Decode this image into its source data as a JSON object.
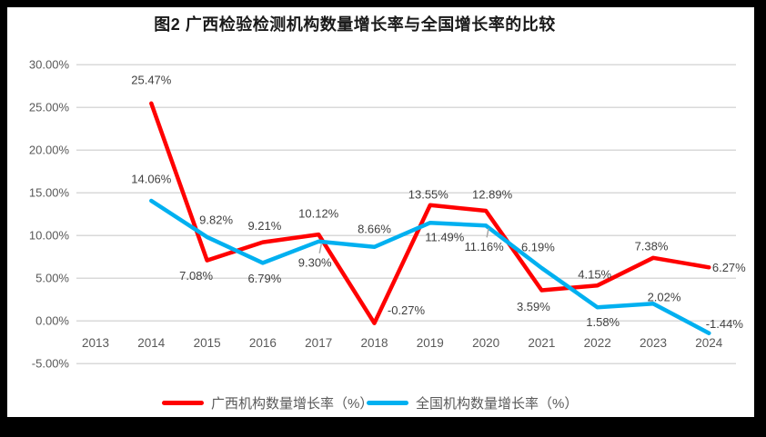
{
  "chart_data": {
    "type": "line",
    "title": "图2 广西检验检测机构数量增长率与全国增长率的比较",
    "categories": [
      "2013",
      "2014",
      "2015",
      "2016",
      "2017",
      "2018",
      "2019",
      "2020",
      "2021",
      "2022",
      "2023",
      "2024"
    ],
    "xlabel": "",
    "ylabel": "",
    "y_axis": {
      "min": -5,
      "max": 30,
      "step": 5,
      "tick_labels": [
        "-5.00%",
        "0.00%",
        "5.00%",
        "10.00%",
        "15.00%",
        "20.00%",
        "25.00%",
        "30.00%"
      ]
    },
    "grid": true,
    "legend_position": "bottom",
    "colors": {
      "guangxi": "#ff0000",
      "national": "#00b0f0",
      "gridline": "#d9d9d9",
      "axis_text": "#595959",
      "label_text": "#404040",
      "leader": "#a6a6a6"
    },
    "series": [
      {
        "name": "广西机构数量增长率（%）",
        "color": "#ff0000",
        "points": [
          {
            "category": "2014",
            "value": 25.47,
            "label": "25.47%",
            "dx": 0,
            "dy": -26
          },
          {
            "category": "2015",
            "value": 7.08,
            "label": "7.08%",
            "dx": -12,
            "dy": 17
          },
          {
            "category": "2016",
            "value": 9.21,
            "label": "9.21%",
            "dx": 2,
            "dy": -18
          },
          {
            "category": "2017",
            "value": 10.12,
            "label": "10.12%",
            "dx": 0,
            "dy": -23
          },
          {
            "category": "2018",
            "value": -0.27,
            "label": "-0.27%",
            "dx": 35,
            "dy": -14
          },
          {
            "category": "2019",
            "value": 13.55,
            "label": "13.55%",
            "dx": -2,
            "dy": -12
          },
          {
            "category": "2020",
            "value": 12.89,
            "label": "12.89%",
            "dx": 7,
            "dy": -18
          },
          {
            "category": "2021",
            "value": 3.59,
            "label": "3.59%",
            "dx": -9,
            "dy": 18
          },
          {
            "category": "2022",
            "value": 4.15,
            "label": "4.15%",
            "dx": -3,
            "dy": -12
          },
          {
            "category": "2023",
            "value": 7.38,
            "label": "7.38%",
            "dx": -2,
            "dy": -13
          },
          {
            "category": "2024",
            "value": 6.27,
            "label": "6.27%",
            "dx": 22,
            "dy": 0
          }
        ]
      },
      {
        "name": "全国机构数量增长率（%）",
        "color": "#00b0f0",
        "points": [
          {
            "category": "2014",
            "value": 14.06,
            "label": "14.06%",
            "dx": 0,
            "dy": -24
          },
          {
            "category": "2015",
            "value": 9.82,
            "label": "9.82%",
            "dx": 10,
            "dy": -19
          },
          {
            "category": "2016",
            "value": 6.79,
            "label": "6.79%",
            "dx": 2,
            "dy": 17
          },
          {
            "category": "2017",
            "value": 9.3,
            "label": "9.30%",
            "dx": -4,
            "dy": 23,
            "leader": true
          },
          {
            "category": "2018",
            "value": 8.66,
            "label": "8.66%",
            "dx": 0,
            "dy": -20
          },
          {
            "category": "2019",
            "value": 11.49,
            "label": "11.49%",
            "dx": 16,
            "dy": 16
          },
          {
            "category": "2020",
            "value": 11.16,
            "label": "11.16%",
            "dx": -2,
            "dy": 23,
            "leader": true
          },
          {
            "category": "2021",
            "value": 6.19,
            "label": "6.19%",
            "dx": -4,
            "dy": -23
          },
          {
            "category": "2022",
            "value": 1.58,
            "label": "1.58%",
            "dx": 6,
            "dy": 16
          },
          {
            "category": "2023",
            "value": 2.02,
            "label": "2.02%",
            "dx": 12,
            "dy": -7
          },
          {
            "category": "2024",
            "value": -1.44,
            "label": "-1.44%",
            "dx": 17,
            "dy": -10
          }
        ]
      }
    ]
  }
}
